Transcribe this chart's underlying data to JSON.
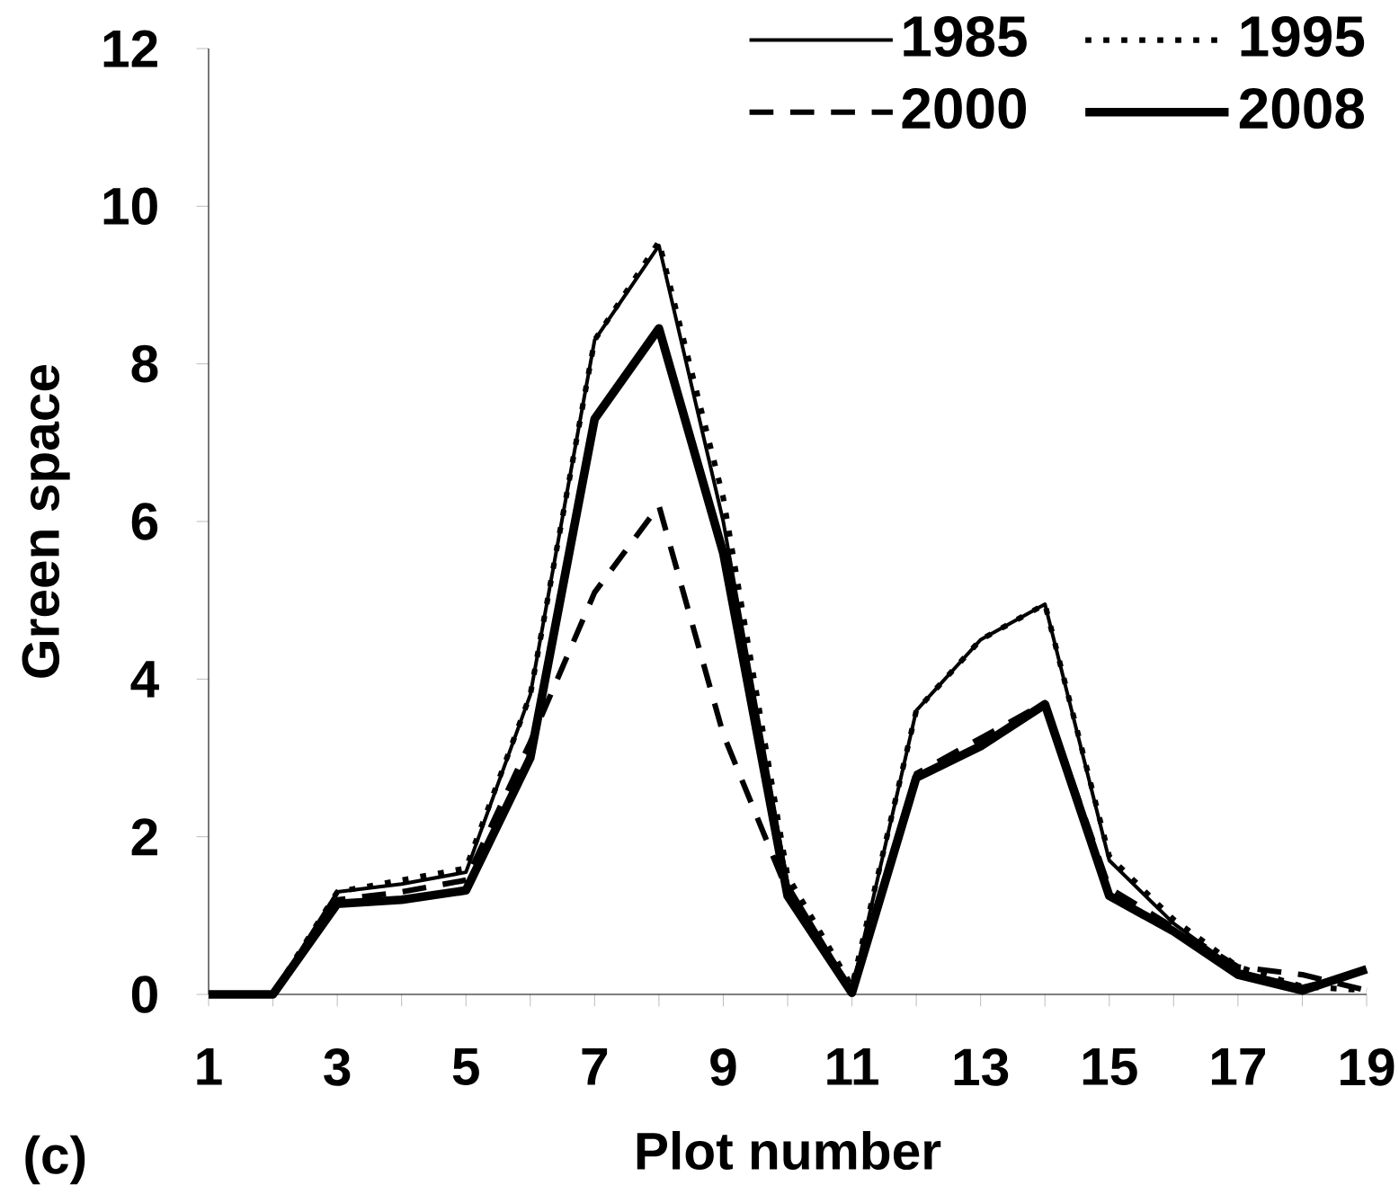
{
  "chart_data": {
    "type": "line",
    "xlabel": "Plot number",
    "ylabel": "Green space",
    "annotations": [
      "(c)"
    ],
    "x": [
      1,
      2,
      3,
      4,
      5,
      6,
      7,
      8,
      9,
      10,
      11,
      12,
      13,
      14,
      15,
      16,
      17,
      18,
      19
    ],
    "xlim": [
      1,
      19
    ],
    "xticks": [
      1,
      3,
      5,
      7,
      9,
      11,
      13,
      15,
      17,
      19
    ],
    "ylim": [
      0,
      12
    ],
    "yticks": [
      0,
      2,
      4,
      6,
      8,
      10,
      12
    ],
    "legend": "top right",
    "grid": false,
    "marker": "none",
    "series": [
      {
        "name": "1985",
        "color": "#000000",
        "line_style": "solid",
        "values": [
          0,
          0,
          1.3,
          1.4,
          1.55,
          3.8,
          8.3,
          9.5,
          6.0,
          1.4,
          0.05,
          3.6,
          4.5,
          4.95,
          1.7,
          0.9,
          0.3,
          0.1,
          0.3
        ]
      },
      {
        "name": "1995",
        "color": "#000000",
        "line_style": "dotted",
        "values": [
          0,
          0,
          1.3,
          1.45,
          1.6,
          3.8,
          8.3,
          9.55,
          6.3,
          1.5,
          0.1,
          3.6,
          4.5,
          4.95,
          1.75,
          0.95,
          0.35,
          0.1,
          0.05
        ]
      },
      {
        "name": "2000",
        "color": "#000000",
        "line_style": "dashed",
        "values": [
          0,
          0,
          1.2,
          1.3,
          1.45,
          3.2,
          5.1,
          6.2,
          3.3,
          1.3,
          0.05,
          2.8,
          3.25,
          3.7,
          1.35,
          0.85,
          0.35,
          0.25,
          0.05
        ]
      },
      {
        "name": "2008",
        "color": "#000000",
        "line_style": "solid",
        "values": [
          0,
          0,
          1.15,
          1.2,
          1.32,
          3.0,
          7.3,
          8.45,
          5.6,
          1.25,
          0.02,
          2.75,
          3.15,
          3.68,
          1.25,
          0.8,
          0.25,
          0.05,
          0.32
        ]
      }
    ]
  }
}
